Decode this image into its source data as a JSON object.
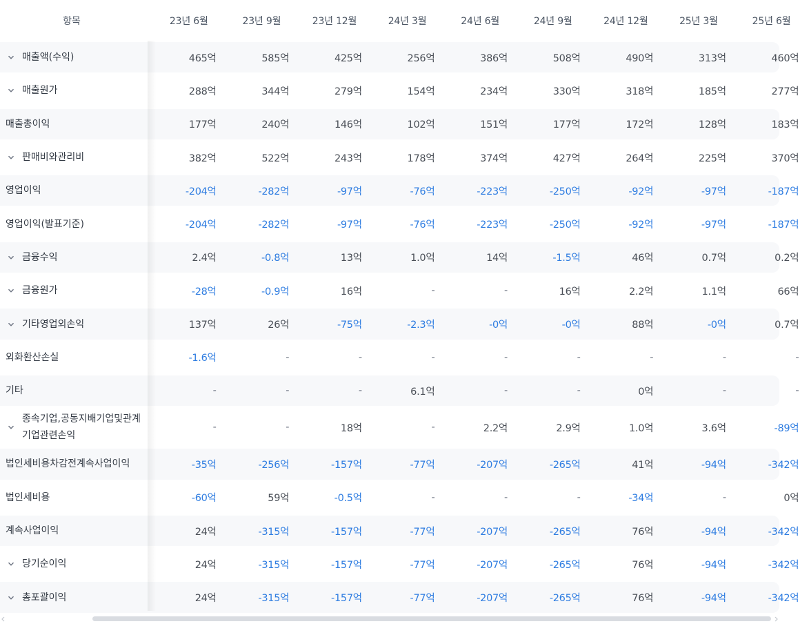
{
  "header": {
    "item_label": "항목",
    "periods": [
      "23년 6월",
      "23년 9월",
      "23년 12월",
      "24년 3월",
      "24년 6월",
      "24년 9월",
      "24년 12월",
      "25년 3월",
      "25년 6월"
    ]
  },
  "colors": {
    "negative": "#2f7de1",
    "text": "#4a4f57",
    "row_shade": "#f7f8fa"
  },
  "rows": [
    {
      "label": "매출액(수익)",
      "expandable": true,
      "values": [
        "465억",
        "585억",
        "425억",
        "256억",
        "386억",
        "508억",
        "490억",
        "313억",
        "460억"
      ]
    },
    {
      "label": "매출원가",
      "expandable": true,
      "values": [
        "288억",
        "344억",
        "279억",
        "154억",
        "234억",
        "330억",
        "318억",
        "185억",
        "277억"
      ]
    },
    {
      "label": "매출총이익",
      "expandable": false,
      "values": [
        "177억",
        "240억",
        "146억",
        "102억",
        "151억",
        "177억",
        "172억",
        "128억",
        "183억"
      ]
    },
    {
      "label": "판매비와관리비",
      "expandable": true,
      "values": [
        "382억",
        "522억",
        "243억",
        "178억",
        "374억",
        "427억",
        "264억",
        "225억",
        "370억"
      ]
    },
    {
      "label": "영업이익",
      "expandable": false,
      "values": [
        "-204억",
        "-282억",
        "-97억",
        "-76억",
        "-223억",
        "-250억",
        "-92억",
        "-97억",
        "-187억"
      ]
    },
    {
      "label": "영업이익(발표기준)",
      "expandable": false,
      "values": [
        "-204억",
        "-282억",
        "-97억",
        "-76억",
        "-223억",
        "-250억",
        "-92억",
        "-97억",
        "-187억"
      ]
    },
    {
      "label": "금융수익",
      "expandable": true,
      "values": [
        "2.4억",
        "-0.8억",
        "13억",
        "1.0억",
        "14억",
        "-1.5억",
        "46억",
        "0.7억",
        "0.2억"
      ]
    },
    {
      "label": "금융원가",
      "expandable": true,
      "values": [
        "-28억",
        "-0.9억",
        "16억",
        "-",
        "-",
        "16억",
        "2.2억",
        "1.1억",
        "66억"
      ]
    },
    {
      "label": "기타영업외손익",
      "expandable": true,
      "values": [
        "137억",
        "26억",
        "-75억",
        "-2.3억",
        "-0억",
        "-0억",
        "88억",
        "-0억",
        "0.7억"
      ]
    },
    {
      "label": "외화환산손실",
      "expandable": false,
      "values": [
        "-1.6억",
        "-",
        "-",
        "-",
        "-",
        "-",
        "-",
        "-",
        "-"
      ]
    },
    {
      "label": "기타",
      "expandable": false,
      "values": [
        "-",
        "-",
        "-",
        "6.1억",
        "-",
        "-",
        "0억",
        "-",
        "-"
      ]
    },
    {
      "label": "종속기업,공동지배기업및관계기업관련손익",
      "expandable": true,
      "tall": true,
      "values": [
        "-",
        "-",
        "18억",
        "-",
        "2.2억",
        "2.9억",
        "1.0억",
        "3.6억",
        "-89억"
      ]
    },
    {
      "label": "법인세비용차감전계속사업이익",
      "expandable": false,
      "values": [
        "-35억",
        "-256억",
        "-157억",
        "-77억",
        "-207억",
        "-265억",
        "41억",
        "-94억",
        "-342억"
      ]
    },
    {
      "label": "법인세비용",
      "expandable": false,
      "values": [
        "-60억",
        "59억",
        "-0.5억",
        "-",
        "-",
        "-",
        "-34억",
        "-",
        "0억"
      ]
    },
    {
      "label": "계속사업이익",
      "expandable": false,
      "values": [
        "24억",
        "-315억",
        "-157억",
        "-77억",
        "-207억",
        "-265억",
        "76억",
        "-94억",
        "-342억"
      ]
    },
    {
      "label": "당기순이익",
      "expandable": true,
      "values": [
        "24억",
        "-315억",
        "-157억",
        "-77억",
        "-207억",
        "-265억",
        "76억",
        "-94억",
        "-342억"
      ]
    },
    {
      "label": "총포괄이익",
      "expandable": true,
      "values": [
        "24억",
        "-315억",
        "-157억",
        "-77억",
        "-207억",
        "-265억",
        "76억",
        "-94억",
        "-342억"
      ]
    }
  ]
}
